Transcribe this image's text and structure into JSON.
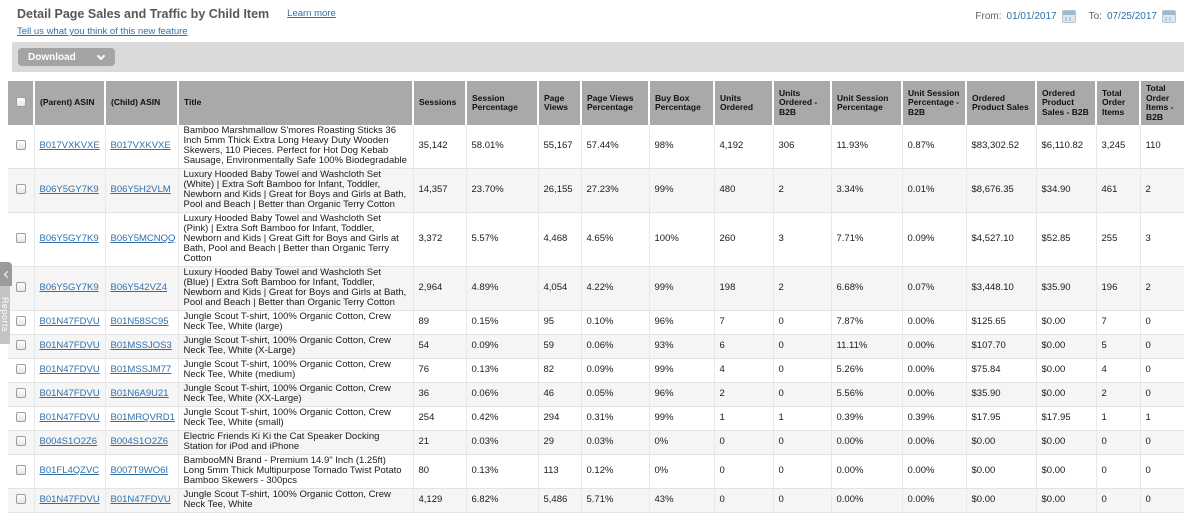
{
  "header": {
    "title": "Detail Page Sales and Traffic by Child Item",
    "learn_more": "Learn more",
    "feedback": "Tell us what you think of this new feature",
    "from_label": "From:",
    "from_value": "01/01/2017",
    "to_label": "To:",
    "to_value": "07/25/2017"
  },
  "toolbar": {
    "download_label": "Download"
  },
  "side_tab": {
    "label": "Reports"
  },
  "colors": {
    "link_blue": "#2e70ad",
    "table_header_gray": "#a9a9a9",
    "toolbar_gray": "#dadada",
    "button_gray": "#a4a4a4",
    "row_stripe": "#f5f5f5"
  },
  "table": {
    "columns": [
      "(Parent) ASIN",
      "(Child) ASIN",
      "Title",
      "Sessions",
      "Session Percentage",
      "Page Views",
      "Page Views Percentage",
      "Buy Box Percentage",
      "Units Ordered",
      "Units Ordered - B2B",
      "Unit Session Percentage",
      "Unit Session Percentage - B2B",
      "Ordered Product Sales",
      "Ordered Product Sales - B2B",
      "Total Order Items",
      "Total Order Items - B2B"
    ],
    "rows": [
      {
        "parent": "B017VXKVXE",
        "child": "B017VXKVXE",
        "title": "Bamboo Marshmallow S'mores Roasting Sticks 36 Inch 5mm Thick Extra Long Heavy Duty Wooden Skewers, 110 Pieces. Perfect for Hot Dog Kebab Sausage, Environmentally Safe 100% Biodegradable",
        "values": [
          "35,142",
          "58.01%",
          "55,167",
          "57.44%",
          "98%",
          "4,192",
          "306",
          "11.93%",
          "0.87%",
          "$83,302.52",
          "$6,110.82",
          "3,245",
          "110"
        ]
      },
      {
        "parent": "B06Y5GY7K9",
        "child": "B06Y5H2VLM",
        "title": "Luxury Hooded Baby Towel and Washcloth Set (White) | Extra Soft Bamboo for Infant, Toddler, Newborn and Kids | Great for Boys and Girls at Bath, Pool and Beach | Better than Organic Terry Cotton",
        "values": [
          "14,357",
          "23.70%",
          "26,155",
          "27.23%",
          "99%",
          "480",
          "2",
          "3.34%",
          "0.01%",
          "$8,676.35",
          "$34.90",
          "461",
          "2"
        ]
      },
      {
        "parent": "B06Y5GY7K9",
        "child": "B06Y5MCNQQ",
        "title": "Luxury Hooded Baby Towel and Washcloth Set (Pink) | Extra Soft Bamboo for Infant, Toddler, Newborn and Kids | Great Gift for Boys and Girls at Bath, Pool and Beach | Better than Organic Terry Cotton",
        "values": [
          "3,372",
          "5.57%",
          "4,468",
          "4.65%",
          "100%",
          "260",
          "3",
          "7.71%",
          "0.09%",
          "$4,527.10",
          "$52.85",
          "255",
          "3"
        ]
      },
      {
        "parent": "B06Y5GY7K9",
        "child": "B06Y542VZ4",
        "title": "Luxury Hooded Baby Towel and Washcloth Set (Blue) | Extra Soft Bamboo for Infant, Toddler, Newborn and Kids | Great for Boys and Girls at Bath, Pool and Beach | Better than Organic Terry Cotton",
        "values": [
          "2,964",
          "4.89%",
          "4,054",
          "4.22%",
          "99%",
          "198",
          "2",
          "6.68%",
          "0.07%",
          "$3,448.10",
          "$35.90",
          "196",
          "2"
        ]
      },
      {
        "parent": "B01N47FDVU",
        "child": "B01N58SC95",
        "title": "Jungle Scout T-shirt, 100% Organic Cotton, Crew Neck Tee, White (large)",
        "values": [
          "89",
          "0.15%",
          "95",
          "0.10%",
          "96%",
          "7",
          "0",
          "7.87%",
          "0.00%",
          "$125.65",
          "$0.00",
          "7",
          "0"
        ]
      },
      {
        "parent": "B01N47FDVU",
        "child": "B01MSSJOS3",
        "title": "Jungle Scout T-shirt, 100% Organic Cotton, Crew Neck Tee, White (X-Large)",
        "values": [
          "54",
          "0.09%",
          "59",
          "0.06%",
          "93%",
          "6",
          "0",
          "11.11%",
          "0.00%",
          "$107.70",
          "$0.00",
          "5",
          "0"
        ]
      },
      {
        "parent": "B01N47FDVU",
        "child": "B01MSSJM77",
        "title": "Jungle Scout T-shirt, 100% Organic Cotton, Crew Neck Tee, White (medium)",
        "values": [
          "76",
          "0.13%",
          "82",
          "0.09%",
          "99%",
          "4",
          "0",
          "5.26%",
          "0.00%",
          "$75.84",
          "$0.00",
          "4",
          "0"
        ]
      },
      {
        "parent": "B01N47FDVU",
        "child": "B01N6A9U21",
        "title": "Jungle Scout T-shirt, 100% Organic Cotton, Crew Neck Tee, White (XX-Large)",
        "values": [
          "36",
          "0.06%",
          "46",
          "0.05%",
          "96%",
          "2",
          "0",
          "5.56%",
          "0.00%",
          "$35.90",
          "$0.00",
          "2",
          "0"
        ]
      },
      {
        "parent": "B01N47FDVU",
        "child": "B01MRQVRD1",
        "title": "Jungle Scout T-shirt, 100% Organic Cotton, Crew Neck Tee, White (small)",
        "values": [
          "254",
          "0.42%",
          "294",
          "0.31%",
          "99%",
          "1",
          "1",
          "0.39%",
          "0.39%",
          "$17.95",
          "$17.95",
          "1",
          "1"
        ]
      },
      {
        "parent": "B004S1O2Z6",
        "child": "B004S1O2Z6",
        "title": "Electric Friends Ki Ki the Cat Speaker Docking Station for iPod and iPhone",
        "values": [
          "21",
          "0.03%",
          "29",
          "0.03%",
          "0%",
          "0",
          "0",
          "0.00%",
          "0.00%",
          "$0.00",
          "$0.00",
          "0",
          "0"
        ]
      },
      {
        "parent": "B01FL4QZVC",
        "child": "B007T9WO6I",
        "title": "BambooMN Brand - Premium 14.9\" Inch (1.25ft) Long 5mm Thick Multipurpose Tornado Twist Potato Bamboo Skewers - 300pcs",
        "values": [
          "80",
          "0.13%",
          "113",
          "0.12%",
          "0%",
          "0",
          "0",
          "0.00%",
          "0.00%",
          "$0.00",
          "$0.00",
          "0",
          "0"
        ]
      },
      {
        "parent": "B01N47FDVU",
        "child": "B01N47FDVU",
        "title": "Jungle Scout T-shirt, 100% Organic Cotton, Crew Neck Tee, White",
        "values": [
          "4,129",
          "6.82%",
          "5,486",
          "5.71%",
          "43%",
          "0",
          "0",
          "0.00%",
          "0.00%",
          "$0.00",
          "$0.00",
          "0",
          "0"
        ]
      }
    ]
  }
}
